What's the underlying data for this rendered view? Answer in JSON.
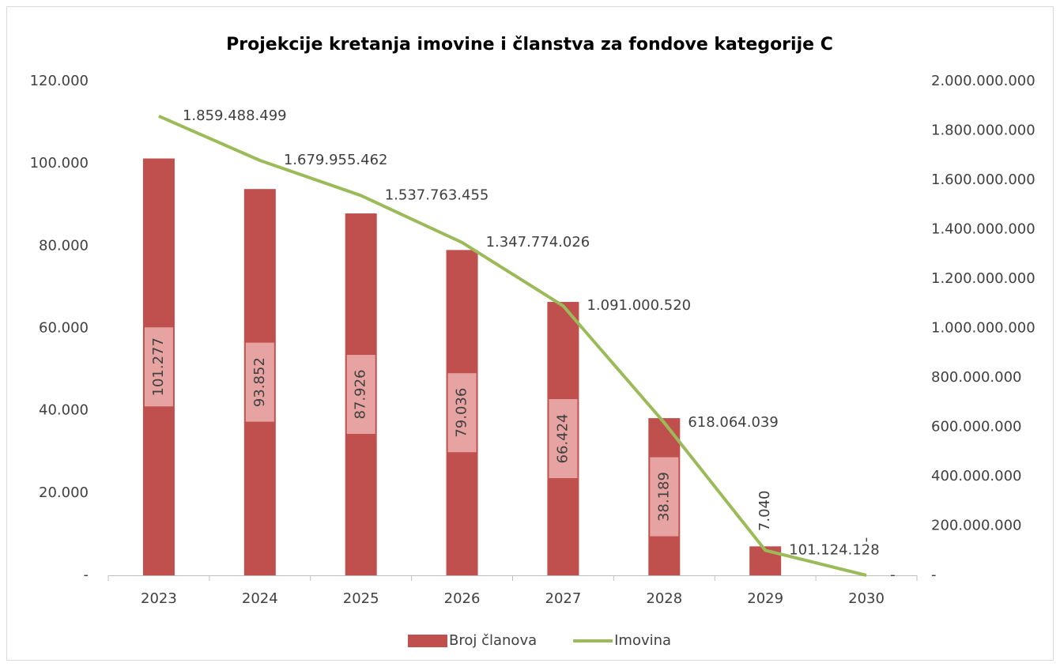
{
  "chart_data": {
    "type": "combo",
    "title": "Projekcije kretanja imovine i članstva za fondove kategorije C",
    "categories": [
      "2023",
      "2024",
      "2025",
      "2026",
      "2027",
      "2028",
      "2029",
      "2030"
    ],
    "series": [
      {
        "name": "Broj članova",
        "type": "bar",
        "color": "#c0504d",
        "values": [
          101277,
          93852,
          87926,
          79036,
          66424,
          38189,
          7040,
          0
        ],
        "value_labels": [
          "101.277",
          "93.852",
          "87.926",
          "79.036",
          "66.424",
          "38.189",
          "7.040",
          "-"
        ]
      },
      {
        "name": "Imovina",
        "type": "line",
        "axis": "y2",
        "color": "#9bbb59",
        "values": [
          1859488499,
          1679955462,
          1537763455,
          1347774026,
          1091000520,
          618064039,
          101124128,
          0
        ],
        "value_labels": [
          "1.859.488.499",
          "1.679.955.462",
          "1.537.763.455",
          "1.347.774.026",
          "1.091.000.520",
          "618.064.039",
          "101.124.128",
          "-"
        ]
      }
    ],
    "ylim": [
      0,
      120000
    ],
    "yticks": [
      {
        "value": 0,
        "label": "-"
      },
      {
        "value": 20000,
        "label": "20.000"
      },
      {
        "value": 40000,
        "label": "40.000"
      },
      {
        "value": 60000,
        "label": "60.000"
      },
      {
        "value": 80000,
        "label": "80.000"
      },
      {
        "value": 100000,
        "label": "100.000"
      },
      {
        "value": 120000,
        "label": "120.000"
      }
    ],
    "y2lim": [
      0,
      2000000000
    ],
    "y2ticks": [
      {
        "value": 0,
        "label": "-"
      },
      {
        "value": 200000000,
        "label": "200.000.000"
      },
      {
        "value": 400000000,
        "label": "400.000.000"
      },
      {
        "value": 600000000,
        "label": "600.000.000"
      },
      {
        "value": 800000000,
        "label": "800.000.000"
      },
      {
        "value": 1000000000,
        "label": "1.000.000.000"
      },
      {
        "value": 1200000000,
        "label": "1.200.000.000"
      },
      {
        "value": 1400000000,
        "label": "1.400.000.000"
      },
      {
        "value": 1600000000,
        "label": "1.600.000.000"
      },
      {
        "value": 1800000000,
        "label": "1.800.000.000"
      },
      {
        "value": 2000000000,
        "label": "2.000.000.000"
      }
    ],
    "legend": "bottom",
    "grid": false
  }
}
